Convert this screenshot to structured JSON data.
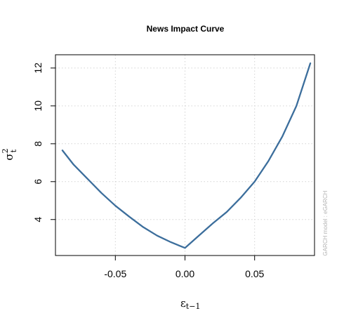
{
  "chart_data": {
    "type": "line",
    "title": "News Impact Curve",
    "xlabel": "ε",
    "xlabel_sub": "t−1",
    "ylabel": "σ",
    "ylabel_sup": "2",
    "ylabel_sub": "t",
    "side_note": "GARCH model : eGARCH",
    "xlim": [
      -0.093,
      0.093
    ],
    "ylim": [
      2.1,
      12.7
    ],
    "x_ticks": [
      -0.05,
      0.0,
      0.05
    ],
    "x_tick_labels": [
      "-0.05",
      "0.00",
      "0.05"
    ],
    "y_ticks": [
      4,
      6,
      8,
      10,
      12
    ],
    "y_tick_labels": [
      "4",
      "6",
      "8",
      "10",
      "12"
    ],
    "grid": true,
    "line_color": "#3c6e9c",
    "grid_color": "#d3d3d3",
    "series": [
      {
        "x": [
          -0.088,
          -0.08,
          -0.07,
          -0.06,
          -0.05,
          -0.04,
          -0.03,
          -0.02,
          -0.01,
          0.0,
          0.01,
          0.02,
          0.03,
          0.04,
          0.05,
          0.06,
          0.07,
          0.08,
          0.09
        ],
        "values": [
          7.65,
          6.9,
          6.15,
          5.4,
          4.73,
          4.15,
          3.6,
          3.15,
          2.8,
          2.5,
          3.15,
          3.8,
          4.4,
          5.15,
          6.0,
          7.1,
          8.4,
          10.0,
          12.25
        ]
      }
    ]
  }
}
